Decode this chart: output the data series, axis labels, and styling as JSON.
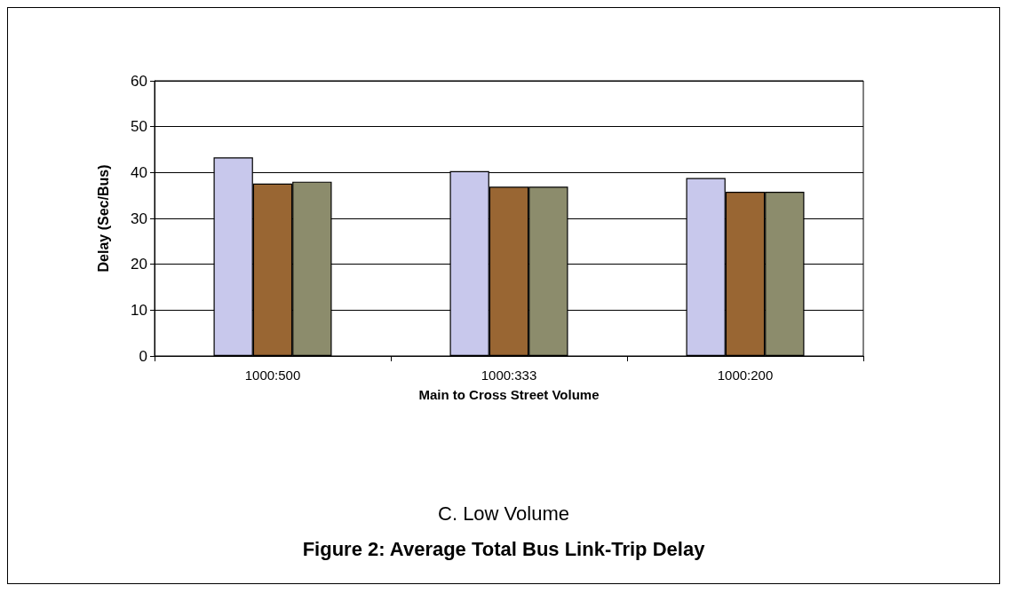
{
  "chart_data": {
    "type": "bar",
    "title": "Figure 2: Average Total Bus Link-Trip Delay",
    "subtitle": "C. Low Volume",
    "xlabel": "Main to Cross Street Volume",
    "ylabel": "Delay (Sec/Bus)",
    "categories": [
      "1000:500",
      "1000:333",
      "1000:200"
    ],
    "series": [
      {
        "color": "#c8c8ec",
        "values": [
          43.3,
          40.3,
          38.8
        ]
      },
      {
        "color": "#996633",
        "values": [
          37.6,
          36.9,
          35.8
        ]
      },
      {
        "color": "#8c8c6c",
        "values": [
          38.0,
          36.9,
          35.8
        ]
      }
    ],
    "ylim": [
      0,
      60
    ],
    "yticks": [
      0,
      10,
      20,
      30,
      40,
      50,
      60
    ],
    "grid": "y"
  }
}
